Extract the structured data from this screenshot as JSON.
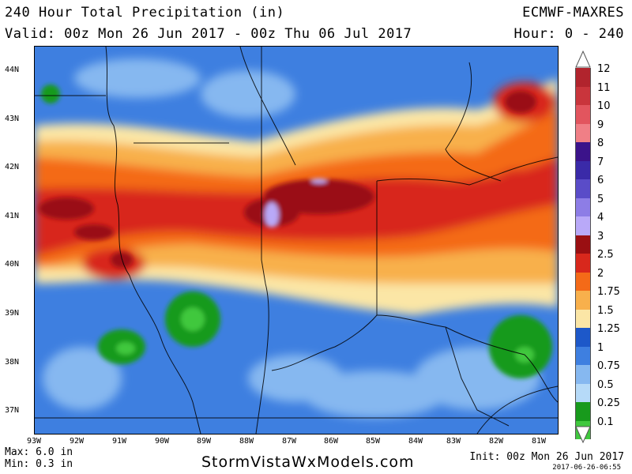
{
  "header": {
    "title": "240 Hour Total Precipitation (in)",
    "model": "ECMWF-MAXRES",
    "valid": "Valid: 00z Mon 26 Jun 2017 - 00z Thu 06 Jul 2017",
    "hour": "Hour: 0 - 240"
  },
  "axes": {
    "lat_labels": [
      "44N",
      "43N",
      "42N",
      "41N",
      "40N",
      "39N",
      "38N",
      "37N"
    ],
    "lon_labels": [
      "93W",
      "92W",
      "91W",
      "90W",
      "89W",
      "88W",
      "87W",
      "86W",
      "85W",
      "84W",
      "83W",
      "82W",
      "81W"
    ]
  },
  "legend": {
    "levels": [
      "12",
      "11",
      "10",
      "9",
      "8",
      "7",
      "6",
      "5",
      "4",
      "3",
      "2.5",
      "2",
      "1.75",
      "1.5",
      "1.25",
      "1",
      "0.75",
      "0.5",
      "0.25",
      "0.1"
    ],
    "colors": [
      "#b1242d",
      "#c9353c",
      "#e2555e",
      "#f07f86",
      "#3b138a",
      "#3a2aa8",
      "#5a4cc8",
      "#8d7de6",
      "#b9a9f8",
      "#9a0f12",
      "#d8281c",
      "#f46a18",
      "#f8b04c",
      "#fbe6a6",
      "#1d58c9",
      "#3e7fe0",
      "#86b8f0",
      "#b6daf8",
      "#189a1c",
      "#40c83e",
      "#8ae58a"
    ]
  },
  "footer": {
    "max": "Max: 6.0 in",
    "min": "Min: 0.3 in",
    "site": "StormVistaWxModels.com",
    "init": "Init: 00z Mon 26 Jun 2017",
    "stamp": "2017-06-26-06:55"
  }
}
